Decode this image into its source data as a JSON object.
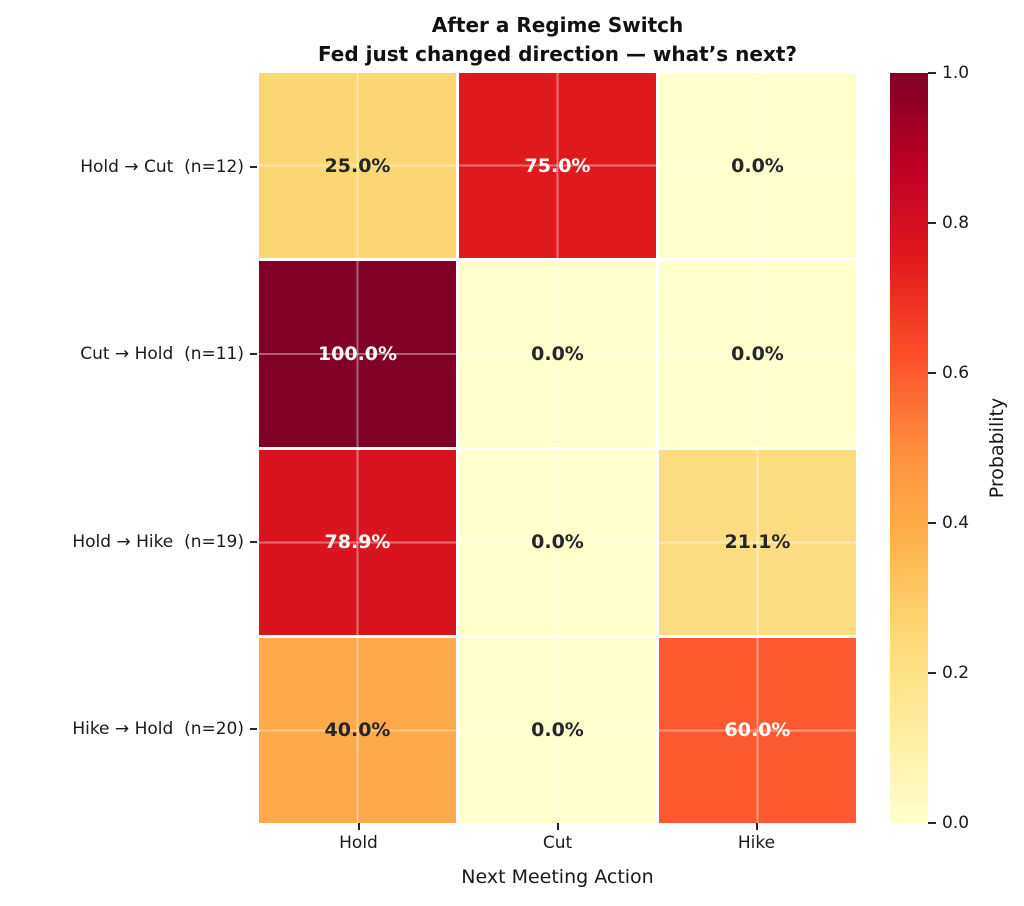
{
  "title": {
    "line1": "After a Regime Switch",
    "line2": "Fed just changed direction — what’s next?"
  },
  "chart_data": {
    "type": "heatmap",
    "title": "After a Regime Switch",
    "subtitle": "Fed just changed direction — what’s next?",
    "xlabel": "Next Meeting Action",
    "columns": [
      "Hold",
      "Cut",
      "Hike"
    ],
    "rows": [
      {
        "label": "Hold → Cut  (n=12)",
        "values": [
          0.25,
          0.75,
          0.0
        ]
      },
      {
        "label": "Cut → Hold  (n=11)",
        "values": [
          1.0,
          0.0,
          0.0
        ]
      },
      {
        "label": "Hold → Hike  (n=19)",
        "values": [
          0.789,
          0.0,
          0.211
        ]
      },
      {
        "label": "Hike → Hold  (n=20)",
        "values": [
          0.4,
          0.0,
          0.6
        ]
      }
    ],
    "cell_annotations": [
      [
        "25.0%",
        "75.0%",
        "0.0%"
      ],
      [
        "100.0%",
        "0.0%",
        "0.0%"
      ],
      [
        "78.9%",
        "0.0%",
        "21.1%"
      ],
      [
        "40.0%",
        "0.0%",
        "60.0%"
      ]
    ],
    "cell_colors": [
      [
        "#fcd672",
        "#e0191c",
        "#ffffcc"
      ],
      [
        "#800026",
        "#ffffcc",
        "#ffffcc"
      ],
      [
        "#d9141e",
        "#ffffcc",
        "#fedd82"
      ],
      [
        "#fea94a",
        "#ffffcc",
        "#fc5a2e"
      ]
    ],
    "cell_text_colors": [
      [
        "#262626",
        "#ffffff",
        "#262626"
      ],
      [
        "#ffffff",
        "#262626",
        "#262626"
      ],
      [
        "#ffffff",
        "#262626",
        "#262626"
      ],
      [
        "#262626",
        "#262626",
        "#ffffff"
      ]
    ],
    "colorbar": {
      "label": "Probability",
      "min": 0.0,
      "max": 1.0,
      "ticks": [
        "1.0",
        "0.8",
        "0.6",
        "0.4",
        "0.2",
        "0.0"
      ],
      "colormap_name": "YlOrRd",
      "colormap_stops_bottom_to_top": [
        "#ffffcc",
        "#ffeda0",
        "#fed976",
        "#feb24c",
        "#fd8d3c",
        "#fc4e2a",
        "#e31a1c",
        "#bd0026",
        "#800026"
      ]
    },
    "grid": true,
    "legend_position": "right-colorbar"
  }
}
